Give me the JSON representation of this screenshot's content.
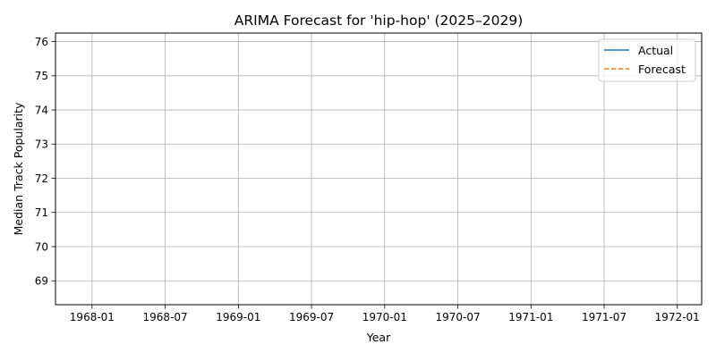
{
  "chart_data": {
    "type": "line",
    "title": "ARIMA Forecast for 'hip-hop' (2025–2029)",
    "xlabel": "Year",
    "ylabel": "Median Track Popularity",
    "x_ticks": [
      "1968-01",
      "1968-07",
      "1969-01",
      "1969-07",
      "1970-01",
      "1970-07",
      "1971-01",
      "1971-07",
      "1972-01"
    ],
    "xlim": [
      "1967-10",
      "1972-03"
    ],
    "y_ticks": [
      69,
      70,
      71,
      72,
      73,
      74,
      75,
      76
    ],
    "ylim": [
      68.3,
      76.25
    ],
    "grid": true,
    "legend_position": "top-right",
    "series": [
      {
        "name": "Actual",
        "color": "#1f77b4",
        "dash": "solid",
        "points": []
      },
      {
        "name": "Forecast",
        "color": "#ff7f0e",
        "dash": "dashed",
        "points": []
      }
    ]
  }
}
